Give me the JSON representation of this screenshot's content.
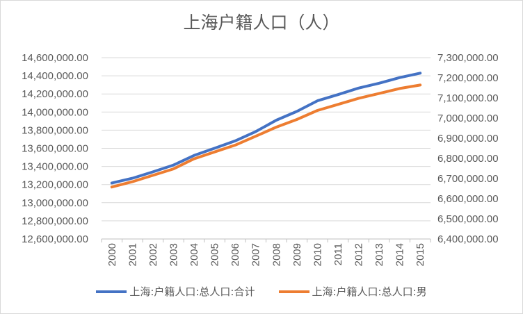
{
  "chart_data": {
    "type": "line",
    "title": "上海户籍人口（人）",
    "categories": [
      "2000",
      "2001",
      "2002",
      "2003",
      "2004",
      "2005",
      "2006",
      "2007",
      "2008",
      "2009",
      "2010",
      "2011",
      "2012",
      "2013",
      "2014",
      "2015"
    ],
    "series": [
      {
        "name": "上海:户籍人口:总人口:合计",
        "axis": "left",
        "color": "#4472c4",
        "values": [
          13218000,
          13270000,
          13340000,
          13415000,
          13521000,
          13601000,
          13682000,
          13785000,
          13910000,
          14007000,
          14124000,
          14192000,
          14264000,
          14318000,
          14380000,
          14429000
        ]
      },
      {
        "name": "上海:户籍人口:总人口:男",
        "axis": "right",
        "color": "#ed7d31",
        "values": [
          6658000,
          6684000,
          6716000,
          6748000,
          6798000,
          6832000,
          6866000,
          6910000,
          6955000,
          6993000,
          7038000,
          7068000,
          7098000,
          7122000,
          7147000,
          7164000
        ]
      }
    ],
    "y_left": {
      "min": 12600000,
      "max": 14600000,
      "step": 200000,
      "tick_labels": [
        "14,600,000.00",
        "14,400,000.00",
        "14,200,000.00",
        "14,000,000.00",
        "13,800,000.00",
        "13,600,000.00",
        "13,400,000.00",
        "13,200,000.00",
        "13,000,000.00",
        "12,800,000.00",
        "12,600,000.00"
      ]
    },
    "y_right": {
      "min": 6400000,
      "max": 7300000,
      "step": 100000,
      "tick_labels": [
        "7,300,000.00",
        "7,200,000.00",
        "7,100,000.00",
        "7,000,000.00",
        "6,900,000.00",
        "6,800,000.00",
        "6,700,000.00",
        "6,600,000.00",
        "6,500,000.00",
        "6,400,000.00"
      ]
    },
    "gridlines": true,
    "legend_position": "bottom"
  }
}
